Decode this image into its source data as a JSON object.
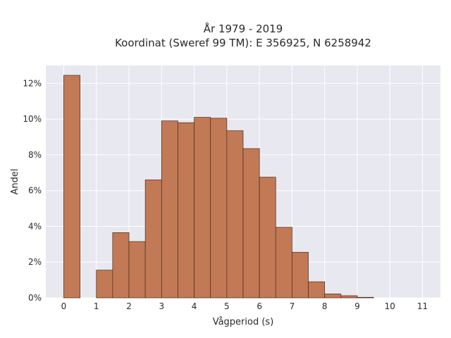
{
  "chart_data": {
    "type": "bar",
    "title_line1": "År 1979 - 2019",
    "title_line2": "Koordinat (Sweref 99 TM): E 356925, N 6258942",
    "xlabel": "Vågperiod (s)",
    "ylabel": "Andel",
    "xlim": [
      -0.55,
      11.55
    ],
    "ylim": [
      0,
      13
    ],
    "x_ticks": [
      0,
      1,
      2,
      3,
      4,
      5,
      6,
      7,
      8,
      9,
      10,
      11
    ],
    "y_ticks": [
      0,
      2,
      4,
      6,
      8,
      10,
      12
    ],
    "y_tick_labels": [
      "0%",
      "2%",
      "4%",
      "6%",
      "8%",
      "10%",
      "12%"
    ],
    "bin_width": 0.5,
    "bins": [
      {
        "start": 0.0,
        "value": 12.45
      },
      {
        "start": 0.5,
        "value": 0.0
      },
      {
        "start": 1.0,
        "value": 1.55
      },
      {
        "start": 1.5,
        "value": 3.65
      },
      {
        "start": 2.0,
        "value": 3.15
      },
      {
        "start": 2.5,
        "value": 6.6
      },
      {
        "start": 3.0,
        "value": 9.9
      },
      {
        "start": 3.5,
        "value": 9.8
      },
      {
        "start": 4.0,
        "value": 10.1
      },
      {
        "start": 4.5,
        "value": 10.05
      },
      {
        "start": 5.0,
        "value": 9.35
      },
      {
        "start": 5.5,
        "value": 8.35
      },
      {
        "start": 6.0,
        "value": 6.75
      },
      {
        "start": 6.5,
        "value": 3.95
      },
      {
        "start": 7.0,
        "value": 2.55
      },
      {
        "start": 7.5,
        "value": 0.9
      },
      {
        "start": 8.0,
        "value": 0.22
      },
      {
        "start": 8.5,
        "value": 0.12
      },
      {
        "start": 9.0,
        "value": 0.03
      }
    ],
    "grid": true,
    "legend": "none",
    "colors": {
      "bar_fill": "#c17a55",
      "bar_stroke": "#4a2a1a",
      "plot_background": "#e8e8f0",
      "grid": "#ffffff"
    }
  }
}
